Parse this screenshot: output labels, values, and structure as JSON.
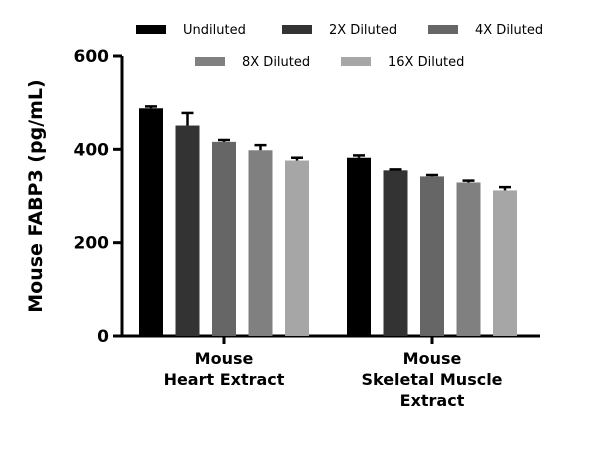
{
  "chart_data": {
    "type": "bar",
    "title": "",
    "xlabel": "",
    "ylabel": "Mouse FABP3 (pg/mL)",
    "ylim": [
      0,
      600
    ],
    "yticks": [
      "0",
      "200",
      "400",
      "600"
    ],
    "categories": [
      [
        "Mouse",
        "Heart Extract"
      ],
      [
        "Mouse",
        "Skeletal Muscle",
        "Extract"
      ]
    ],
    "legend_position": "top",
    "series": [
      {
        "name": "Undiluted",
        "color": "#000000",
        "values": [
          488,
          382
        ],
        "errors": [
          4,
          5
        ]
      },
      {
        "name": "2X Diluted",
        "color": "#333333",
        "values": [
          451,
          355
        ],
        "errors": [
          27,
          2
        ]
      },
      {
        "name": "4X Diluted",
        "color": "#666666",
        "values": [
          416,
          342
        ],
        "errors": [
          4,
          3
        ]
      },
      {
        "name": "8X Diluted",
        "color": "#808080",
        "values": [
          398,
          329
        ],
        "errors": [
          11,
          4
        ]
      },
      {
        "name": "16X Diluted",
        "color": "#a6a6a6",
        "values": [
          376,
          312
        ],
        "errors": [
          6,
          7
        ]
      }
    ]
  }
}
